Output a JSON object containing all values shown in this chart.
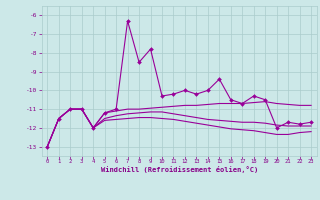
{
  "xlabel": "Windchill (Refroidissement éolien,°C)",
  "x": [
    0,
    1,
    2,
    3,
    4,
    5,
    6,
    7,
    8,
    9,
    10,
    11,
    12,
    13,
    14,
    15,
    16,
    17,
    18,
    19,
    20,
    21,
    22,
    23
  ],
  "series_main": [
    -13.0,
    -11.5,
    -11.0,
    -11.0,
    -12.0,
    -11.2,
    -11.0,
    -6.3,
    -8.5,
    -7.8,
    -10.3,
    -10.2,
    -10.0,
    -10.2,
    -10.0,
    -9.4,
    -10.5,
    -10.7,
    -10.3,
    -10.5,
    -12.0,
    -11.7,
    -11.8,
    -11.7
  ],
  "series2": [
    -13.0,
    -11.5,
    -11.0,
    -11.0,
    -12.0,
    -11.2,
    -11.1,
    -11.0,
    -11.0,
    -10.95,
    -10.9,
    -10.85,
    -10.8,
    -10.8,
    -10.75,
    -10.7,
    -10.7,
    -10.7,
    -10.65,
    -10.6,
    -10.7,
    -10.75,
    -10.8,
    -10.8
  ],
  "series3": [
    -13.0,
    -11.5,
    -11.0,
    -11.0,
    -12.0,
    -11.5,
    -11.35,
    -11.25,
    -11.2,
    -11.15,
    -11.15,
    -11.25,
    -11.35,
    -11.45,
    -11.55,
    -11.6,
    -11.65,
    -11.7,
    -11.7,
    -11.75,
    -11.85,
    -11.9,
    -11.9,
    -11.9
  ],
  "series4": [
    -13.0,
    -11.5,
    -11.0,
    -11.0,
    -12.0,
    -11.6,
    -11.55,
    -11.5,
    -11.45,
    -11.45,
    -11.5,
    -11.55,
    -11.65,
    -11.75,
    -11.85,
    -11.95,
    -12.05,
    -12.1,
    -12.15,
    -12.25,
    -12.35,
    -12.35,
    -12.25,
    -12.2
  ],
  "ylim": [
    -13.5,
    -5.5
  ],
  "yticks": [
    -13,
    -12,
    -11,
    -10,
    -9,
    -8,
    -7,
    -6
  ],
  "xticks": [
    0,
    1,
    2,
    3,
    4,
    5,
    6,
    7,
    8,
    9,
    10,
    11,
    12,
    13,
    14,
    15,
    16,
    17,
    18,
    19,
    20,
    21,
    22,
    23
  ],
  "line_color": "#990099",
  "bg_color": "#cce8e8",
  "grid_color": "#aacccc",
  "tick_color": "#880088",
  "xlabel_color": "#880088"
}
